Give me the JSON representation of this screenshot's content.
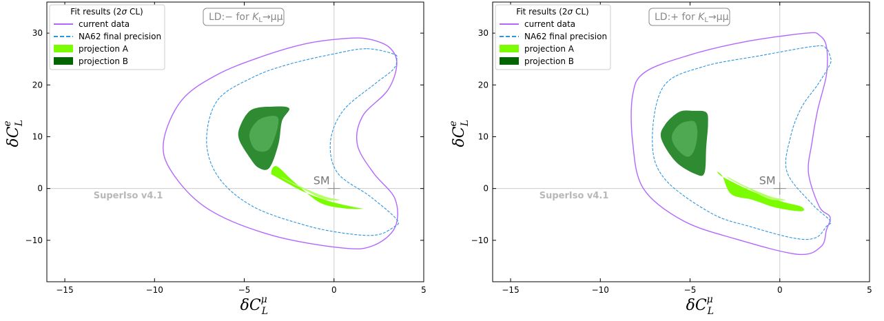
{
  "colors": {
    "current": "#b266ff",
    "na62": "#2b94e0",
    "projA": "#7cfc00",
    "projA_inner": "#b6ff66",
    "projB": "#2e8b32",
    "projB_inner": "#4fa852",
    "refline": "#cccccc"
  },
  "chart_data": [
    {
      "type": "contour",
      "annotation_prefix": "LD:",
      "annotation_sign": "−",
      "annotation_mid": " for ",
      "annotation_K": "K",
      "annotation_L": "L",
      "annotation_arrow": "→μμ",
      "watermark": "SuperIso v4.1",
      "sm_label": "SM",
      "xlabel": {
        "base": "δC",
        "sup": "μ",
        "sub": "L"
      },
      "ylabel": {
        "base": "δC",
        "sup": "e",
        "sub": "L"
      },
      "xlim": [
        -16,
        5
      ],
      "ylim": [
        -18,
        36
      ],
      "xticks": [
        -15,
        -10,
        -5,
        0,
        5
      ],
      "xtick_labels": [
        "−15",
        "−10",
        "−5",
        "0",
        "5"
      ],
      "yticks": [
        -10,
        0,
        10,
        20,
        30
      ],
      "ytick_labels": [
        "−10",
        "0",
        "10",
        "20",
        "30"
      ],
      "sm_point": [
        0,
        0
      ],
      "legend": {
        "title_prefix": "Fit results (2",
        "title_sigma": "σ",
        "title_suffix": " CL)",
        "entries": [
          "current data",
          "NA62 final precision",
          "projection A",
          "projection B"
        ]
      },
      "series": [
        {
          "name": "current data",
          "style": "solid",
          "points": [
            [
              0.8,
              29
            ],
            [
              -1.5,
              28
            ],
            [
              -4,
              25.5
            ],
            [
              -6.5,
              22
            ],
            [
              -8.5,
              17
            ],
            [
              -9.5,
              9
            ],
            [
              -9,
              3
            ],
            [
              -7,
              -4
            ],
            [
              -3.5,
              -9
            ],
            [
              0.5,
              -11.5
            ],
            [
              2.2,
              -11
            ],
            [
              3.4,
              -7.5
            ],
            [
              3.4,
              -2
            ],
            [
              2.2,
              3
            ],
            [
              1.3,
              8.5
            ],
            [
              1.6,
              14
            ],
            [
              3,
              19
            ],
            [
              3.5,
              24
            ],
            [
              3.1,
              27.2
            ],
            [
              2,
              28.8
            ],
            [
              0.8,
              29
            ]
          ]
        },
        {
          "name": "NA62 final precision",
          "style": "dashed",
          "points": [
            [
              1.8,
              27
            ],
            [
              0,
              26
            ],
            [
              -2.5,
              24
            ],
            [
              -4.5,
              21.5
            ],
            [
              -6.5,
              17
            ],
            [
              -7.1,
              9
            ],
            [
              -6.4,
              2
            ],
            [
              -4.5,
              -3.5
            ],
            [
              -1.7,
              -7
            ],
            [
              0.5,
              -8.6
            ],
            [
              2.3,
              -9
            ],
            [
              3.3,
              -7.5
            ],
            [
              3.5,
              -6
            ],
            [
              2,
              -1.5
            ],
            [
              0.2,
              3
            ],
            [
              -0.2,
              9
            ],
            [
              0.5,
              15
            ],
            [
              2.2,
              20
            ],
            [
              3.3,
              23
            ],
            [
              3.5,
              25
            ],
            [
              3.3,
              26
            ],
            [
              1.8,
              27
            ]
          ]
        },
        {
          "name": "projection A",
          "style": "fill",
          "role": "outer",
          "points": [
            [
              -3.5,
              3
            ],
            [
              -3.2,
              2.2
            ],
            [
              -1.7,
              -0.6
            ],
            [
              -0.3,
              -2.4
            ],
            [
              1,
              -3.5
            ],
            [
              1.6,
              -3.9
            ],
            [
              0.5,
              -3.8
            ],
            [
              -0.8,
              -2.7
            ],
            [
              -2.2,
              1.2
            ],
            [
              -3.2,
              4.3
            ],
            [
              -3.5,
              3
            ]
          ]
        },
        {
          "name": "projection A",
          "style": "fill",
          "role": "inner",
          "points": [
            [
              -2.9,
              2.2
            ],
            [
              -1.9,
              0.4
            ],
            [
              -0.5,
              -1.6
            ],
            [
              0.3,
              -2.2
            ],
            [
              -0.6,
              -2
            ],
            [
              -1.7,
              -0.1
            ],
            [
              -2.5,
              1.3
            ],
            [
              -2.9,
              2.2
            ]
          ]
        },
        {
          "name": "projection B",
          "style": "fill",
          "role": "outer",
          "points": [
            [
              -3.5,
              15.8
            ],
            [
              -4.6,
              15.2
            ],
            [
              -5.2,
              12.3
            ],
            [
              -5.3,
              9.6
            ],
            [
              -4.7,
              6
            ],
            [
              -4.2,
              4
            ],
            [
              -3.6,
              4
            ],
            [
              -3.1,
              8.5
            ],
            [
              -2.9,
              13
            ],
            [
              -2.5,
              15.5
            ],
            [
              -3.5,
              15.8
            ]
          ]
        },
        {
          "name": "projection B",
          "style": "fill",
          "role": "inner",
          "points": [
            [
              -3.4,
              14
            ],
            [
              -4.2,
              13.2
            ],
            [
              -4.7,
              10.5
            ],
            [
              -4.4,
              7.6
            ],
            [
              -3.7,
              7.4
            ],
            [
              -3.3,
              10
            ],
            [
              -3.1,
              13.2
            ],
            [
              -3.4,
              14
            ]
          ]
        }
      ]
    },
    {
      "type": "contour",
      "annotation_prefix": "LD:",
      "annotation_sign": "+",
      "annotation_mid": " for ",
      "annotation_K": "K",
      "annotation_L": "L",
      "annotation_arrow": "→μμ",
      "watermark": "SuperIso v4.1",
      "sm_label": "SM",
      "xlabel": {
        "base": "δC",
        "sup": "μ",
        "sub": "L"
      },
      "ylabel": {
        "base": "δC",
        "sup": "e",
        "sub": "L"
      },
      "xlim": [
        -16,
        5
      ],
      "ylim": [
        -18,
        36
      ],
      "xticks": [
        -15,
        -10,
        -5,
        0,
        5
      ],
      "xtick_labels": [
        "−15",
        "−10",
        "−5",
        "0",
        "5"
      ],
      "yticks": [
        -10,
        0,
        10,
        20,
        30
      ],
      "ytick_labels": [
        "−10",
        "0",
        "10",
        "20",
        "30"
      ],
      "sm_point": [
        0,
        0
      ],
      "legend": {
        "title_prefix": "Fit results (2",
        "title_sigma": "σ",
        "title_suffix": " CL)",
        "entries": [
          "current data",
          "NA62 final precision",
          "projection A",
          "projection B"
        ]
      },
      "series": [
        {
          "name": "current data",
          "style": "solid",
          "points": [
            [
              1.5,
              30
            ],
            [
              -2,
              28.3
            ],
            [
              -5,
              25.8
            ],
            [
              -7.5,
              22.5
            ],
            [
              -8.2,
              18
            ],
            [
              -8.2,
              9
            ],
            [
              -7.6,
              0
            ],
            [
              -5.4,
              -6.2
            ],
            [
              -2.5,
              -9.7
            ],
            [
              1,
              -12.7
            ],
            [
              2.3,
              -11.2
            ],
            [
              2.6,
              -8
            ],
            [
              2.8,
              -5.5
            ],
            [
              2.2,
              -3.5
            ],
            [
              1.6,
              3
            ],
            [
              1.8,
              9
            ],
            [
              2.1,
              15
            ],
            [
              2.6,
              22
            ],
            [
              2.6,
              27.4
            ],
            [
              2.2,
              29.6
            ],
            [
              1.5,
              30
            ]
          ]
        },
        {
          "name": "NA62 final precision",
          "style": "dashed",
          "points": [
            [
              2,
              27.5
            ],
            [
              -1,
              25.7
            ],
            [
              -4.3,
              23.5
            ],
            [
              -6.5,
              19.6
            ],
            [
              -7.1,
              9
            ],
            [
              -6.4,
              1.8
            ],
            [
              -3.8,
              -4.8
            ],
            [
              -1.6,
              -7.4
            ],
            [
              0.8,
              -9.6
            ],
            [
              2,
              -9.5
            ],
            [
              2.6,
              -7.3
            ],
            [
              2.8,
              -6.2
            ],
            [
              1.8,
              -3
            ],
            [
              0.4,
              3.2
            ],
            [
              0.6,
              10
            ],
            [
              1.2,
              15.6
            ],
            [
              2.1,
              20
            ],
            [
              2.8,
              24
            ],
            [
              2.8,
              25.5
            ],
            [
              2.6,
              27
            ],
            [
              2,
              27.5
            ]
          ]
        },
        {
          "name": "projection A",
          "style": "fill",
          "role": "outer",
          "points": [
            [
              -3.5,
              3.2
            ],
            [
              -3.1,
              2.1
            ],
            [
              -1.5,
              -0.6
            ],
            [
              0.2,
              -2.6
            ],
            [
              1.2,
              -3.5
            ],
            [
              1.2,
              -4.4
            ],
            [
              -0.2,
              -3.7
            ],
            [
              -1.5,
              -2.2
            ],
            [
              -2.7,
              -1.1
            ],
            [
              -3.2,
              2.4
            ],
            [
              -3.5,
              3.2
            ]
          ]
        },
        {
          "name": "projection A",
          "style": "fill",
          "role": "inner",
          "points": [
            [
              -2.9,
              2.2
            ],
            [
              -1.9,
              0.4
            ],
            [
              -0.5,
              -1.6
            ],
            [
              0.3,
              -2.2
            ],
            [
              -0.6,
              -2
            ],
            [
              -1.7,
              -0.1
            ],
            [
              -2.5,
              1.3
            ],
            [
              -2.9,
              2.2
            ]
          ]
        },
        {
          "name": "projection B",
          "style": "fill",
          "role": "outer",
          "points": [
            [
              -4.8,
              15
            ],
            [
              -5.6,
              14.8
            ],
            [
              -6.4,
              12.3
            ],
            [
              -6.6,
              9.6
            ],
            [
              -5.8,
              5.2
            ],
            [
              -4.7,
              2.8
            ],
            [
              -4.2,
              3
            ],
            [
              -4.1,
              8
            ],
            [
              -4,
              12.5
            ],
            [
              -4.1,
              14.7
            ],
            [
              -4.8,
              15
            ]
          ]
        },
        {
          "name": "projection B",
          "style": "fill",
          "role": "inner",
          "points": [
            [
              -5,
              13
            ],
            [
              -5.6,
              12.3
            ],
            [
              -6,
              10.2
            ],
            [
              -5.8,
              8
            ],
            [
              -5.2,
              6.2
            ],
            [
              -4.8,
              7.2
            ],
            [
              -4.6,
              10.4
            ],
            [
              -4.7,
              12.6
            ],
            [
              -5,
              13
            ]
          ]
        }
      ]
    }
  ]
}
